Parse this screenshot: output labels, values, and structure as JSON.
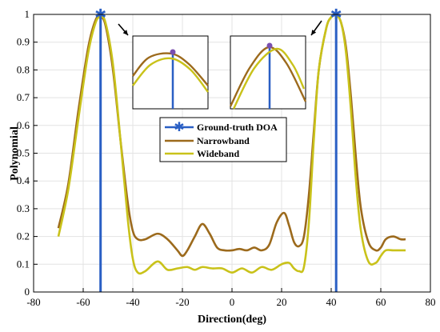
{
  "chart_data": {
    "type": "line",
    "title": "",
    "xlabel": "Direction(deg)",
    "ylabel": "Polynomial",
    "xlim": [
      -80,
      80
    ],
    "ylim": [
      0,
      1
    ],
    "xticks": [
      "-80",
      "-60",
      "-40",
      "-20",
      "0",
      "20",
      "40",
      "60",
      "80"
    ],
    "yticks": [
      "0",
      "0.1",
      "0.2",
      "0.3",
      "0.4",
      "0.5",
      "0.6",
      "0.7",
      "0.8",
      "0.9",
      "1"
    ],
    "grid": true,
    "legend_position": "center",
    "ground_truth_doa": {
      "name": "Ground-truth DOA",
      "color": "#2a5fc4",
      "x": [
        -53,
        42
      ],
      "y": [
        1,
        1
      ]
    },
    "series": [
      {
        "name": "Narrowband",
        "color": "#9c6a1c",
        "x": [
          -70,
          -66,
          -62,
          -58,
          -55,
          -53,
          -51,
          -48,
          -45,
          -42,
          -40,
          -38,
          -35,
          -30,
          -26,
          -22,
          -20,
          -18,
          -15,
          -12,
          -9,
          -6,
          -3,
          0,
          3,
          6,
          9,
          12,
          15,
          18,
          21,
          23,
          25,
          27,
          29,
          31,
          33,
          35,
          38,
          40,
          42,
          44,
          46,
          48,
          50,
          52,
          55,
          58,
          60,
          62,
          65,
          68,
          70
        ],
        "y": [
          0.23,
          0.39,
          0.65,
          0.88,
          0.98,
          0.99,
          0.96,
          0.8,
          0.55,
          0.32,
          0.22,
          0.19,
          0.19,
          0.21,
          0.19,
          0.15,
          0.13,
          0.15,
          0.2,
          0.245,
          0.21,
          0.16,
          0.15,
          0.15,
          0.155,
          0.15,
          0.16,
          0.15,
          0.17,
          0.25,
          0.285,
          0.24,
          0.18,
          0.165,
          0.2,
          0.35,
          0.58,
          0.8,
          0.95,
          0.99,
          1.0,
          0.97,
          0.88,
          0.7,
          0.48,
          0.3,
          0.18,
          0.15,
          0.16,
          0.19,
          0.2,
          0.19,
          0.19
        ]
      },
      {
        "name": "Wideband",
        "color": "#c9c21a",
        "x": [
          -70,
          -66,
          -62,
          -58,
          -55,
          -53,
          -51,
          -48,
          -45,
          -42,
          -40,
          -38,
          -35,
          -30,
          -26,
          -22,
          -18,
          -15,
          -12,
          -8,
          -4,
          0,
          4,
          8,
          12,
          16,
          20,
          23,
          25,
          27,
          29,
          31,
          33,
          35,
          38,
          40,
          42,
          44,
          46,
          48,
          50,
          52,
          55,
          58,
          60,
          62,
          65,
          68,
          70
        ],
        "y": [
          0.2,
          0.37,
          0.62,
          0.86,
          0.97,
          0.99,
          0.97,
          0.82,
          0.55,
          0.26,
          0.12,
          0.07,
          0.075,
          0.11,
          0.08,
          0.085,
          0.09,
          0.08,
          0.09,
          0.085,
          0.085,
          0.07,
          0.085,
          0.07,
          0.09,
          0.08,
          0.1,
          0.105,
          0.085,
          0.075,
          0.09,
          0.25,
          0.55,
          0.8,
          0.95,
          0.99,
          0.995,
          0.97,
          0.86,
          0.65,
          0.4,
          0.22,
          0.11,
          0.105,
          0.13,
          0.15,
          0.15,
          0.15,
          0.15
        ]
      }
    ],
    "insets": [
      {
        "side": "left",
        "arrow_direction": "pointing to left peak"
      },
      {
        "side": "right",
        "arrow_direction": "pointing to right peak"
      }
    ]
  },
  "legend": {
    "entries": [
      "Ground-truth DOA",
      "Narrowband",
      "Wideband"
    ]
  }
}
